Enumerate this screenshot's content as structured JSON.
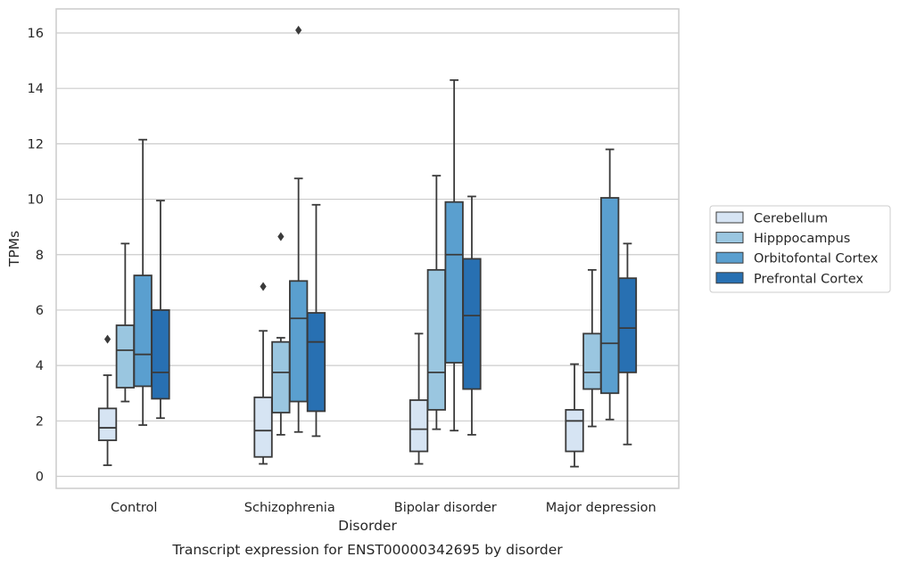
{
  "chart_data": {
    "type": "box",
    "xlabel": "Disorder",
    "ylabel": "TPMs",
    "caption": "Transcript expression for ENST00000342695 by disorder",
    "ylim": [
      -0.4,
      16.85
    ],
    "yticks": [
      0,
      2,
      4,
      6,
      8,
      10,
      12,
      14,
      16
    ],
    "grid": "horizontal",
    "legend_position": "right",
    "categories": [
      "Control",
      "Schizophrenia",
      "Bipolar disorder",
      "Major depression"
    ],
    "series": [
      {
        "name": "Cerebellum",
        "color": "#d6e4f3",
        "boxes": [
          {
            "whisker_low": 0.4,
            "q1": 1.3,
            "median": 1.75,
            "q3": 2.45,
            "whisker_high": 3.65,
            "outliers": [
              4.95
            ]
          },
          {
            "whisker_low": 0.45,
            "q1": 0.7,
            "median": 1.65,
            "q3": 2.85,
            "whisker_high": 5.25,
            "outliers": [
              6.85
            ]
          },
          {
            "whisker_low": 0.45,
            "q1": 0.9,
            "median": 1.7,
            "q3": 2.75,
            "whisker_high": 5.15,
            "outliers": []
          },
          {
            "whisker_low": 0.35,
            "q1": 0.9,
            "median": 2.0,
            "q3": 2.4,
            "whisker_high": 4.05,
            "outliers": []
          }
        ]
      },
      {
        "name": "Hipppocampus",
        "color": "#9ac6e0",
        "boxes": [
          {
            "whisker_low": 2.7,
            "q1": 3.2,
            "median": 4.55,
            "q3": 5.45,
            "whisker_high": 8.4,
            "outliers": []
          },
          {
            "whisker_low": 1.5,
            "q1": 2.3,
            "median": 3.75,
            "q3": 4.85,
            "whisker_high": 5.0,
            "outliers": [
              8.65
            ]
          },
          {
            "whisker_low": 1.7,
            "q1": 2.4,
            "median": 3.75,
            "q3": 7.45,
            "whisker_high": 10.85,
            "outliers": []
          },
          {
            "whisker_low": 1.8,
            "q1": 3.15,
            "median": 3.75,
            "q3": 5.15,
            "whisker_high": 7.45,
            "outliers": []
          }
        ]
      },
      {
        "name": "Orbitofontal Cortex",
        "color": "#5a9fcf",
        "boxes": [
          {
            "whisker_low": 1.85,
            "q1": 3.25,
            "median": 4.4,
            "q3": 7.25,
            "whisker_high": 12.15,
            "outliers": []
          },
          {
            "whisker_low": 1.6,
            "q1": 2.7,
            "median": 5.7,
            "q3": 7.05,
            "whisker_high": 10.75,
            "outliers": [
              16.1
            ]
          },
          {
            "whisker_low": 1.65,
            "q1": 4.1,
            "median": 8.0,
            "q3": 9.9,
            "whisker_high": 14.3,
            "outliers": []
          },
          {
            "whisker_low": 2.05,
            "q1": 3.0,
            "median": 4.8,
            "q3": 10.05,
            "whisker_high": 11.8,
            "outliers": []
          }
        ]
      },
      {
        "name": "Prefrontal Cortex",
        "color": "#2870b2",
        "boxes": [
          {
            "whisker_low": 2.1,
            "q1": 2.8,
            "median": 3.75,
            "q3": 6.0,
            "whisker_high": 9.95,
            "outliers": []
          },
          {
            "whisker_low": 1.45,
            "q1": 2.35,
            "median": 4.85,
            "q3": 5.9,
            "whisker_high": 9.8,
            "outliers": []
          },
          {
            "whisker_low": 1.5,
            "q1": 3.15,
            "median": 5.8,
            "q3": 7.85,
            "whisker_high": 10.1,
            "outliers": []
          },
          {
            "whisker_low": 1.15,
            "q1": 3.75,
            "median": 5.35,
            "q3": 7.15,
            "whisker_high": 8.4,
            "outliers": []
          }
        ]
      }
    ]
  }
}
